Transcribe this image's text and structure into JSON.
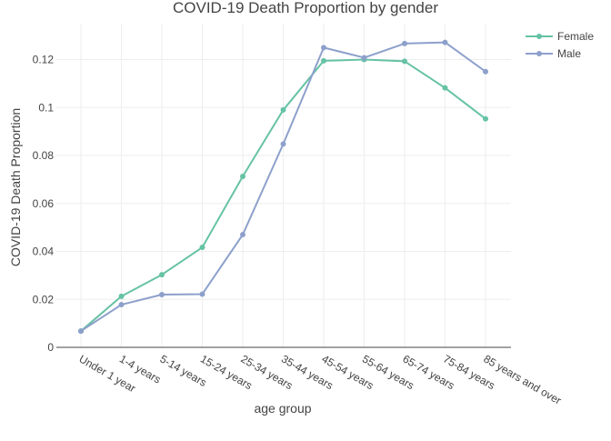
{
  "chart_data": {
    "type": "line",
    "title": "COVID-19 Death Proportion by gender",
    "xlabel": "age group",
    "ylabel": "COVID-19 Death Proportion",
    "categories": [
      "Under 1 year",
      "1-4 years",
      "5-14 years",
      "15-24 years",
      "25-34 years",
      "35-44 years",
      "45-54 years",
      "55-64 years",
      "65-74 years",
      "75-84 years",
      "85 years and over"
    ],
    "ylim": [
      0,
      0.135
    ],
    "yticks": [
      0,
      0.02,
      0.04,
      0.06,
      0.08,
      0.1,
      0.12
    ],
    "ytick_labels": [
      "0",
      "0.02",
      "0.04",
      "0.06",
      "0.08",
      "0.1",
      "0.12"
    ],
    "grid": true,
    "legend_position": "top-right",
    "series": [
      {
        "name": "Female",
        "color": "#66c2a5",
        "values": [
          0.0068,
          0.0213,
          0.0303,
          0.0417,
          0.0713,
          0.099,
          0.1195,
          0.12,
          0.1193,
          0.1082,
          0.0953
        ]
      },
      {
        "name": "Male",
        "color": "#8da0cb",
        "values": [
          0.0068,
          0.0178,
          0.022,
          0.0222,
          0.047,
          0.0848,
          0.125,
          0.1208,
          0.1267,
          0.1272,
          0.115
        ]
      }
    ]
  }
}
